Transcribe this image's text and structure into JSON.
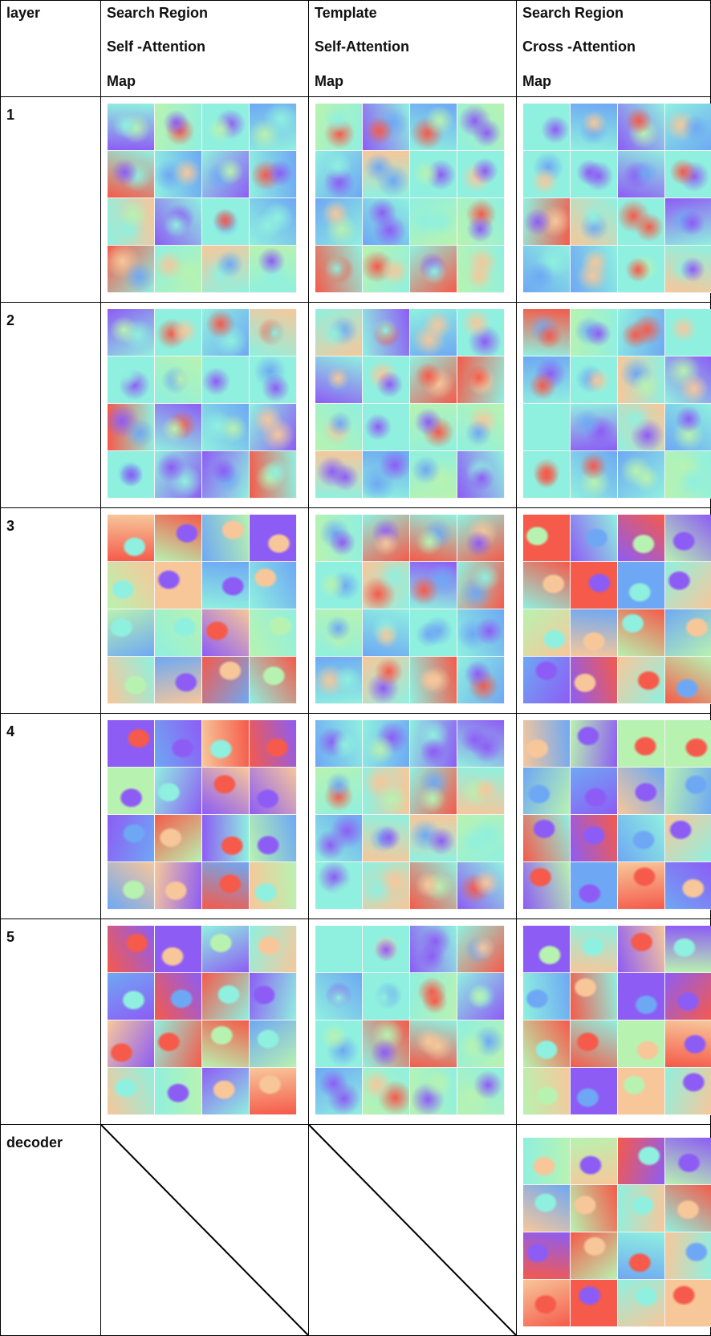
{
  "header": {
    "layer": "layer",
    "col1": [
      "Search Region",
      "Self -Attention",
      "Map"
    ],
    "col2": [
      "Template",
      "Self-Attention",
      "Map"
    ],
    "col3": [
      "Search Region",
      "Cross -Attention",
      "Map"
    ]
  },
  "rows": [
    {
      "label": "1"
    },
    {
      "label": "2"
    },
    {
      "label": "3"
    },
    {
      "label": "4"
    },
    {
      "label": "5"
    },
    {
      "label": "decoder"
    }
  ],
  "colors": {
    "purple": "#8d5cf5",
    "blue": "#6ea8f4",
    "cyan": "#8ff0df",
    "green": "#b8f2b0",
    "peach": "#f7c79a",
    "red": "#f55a4a"
  }
}
